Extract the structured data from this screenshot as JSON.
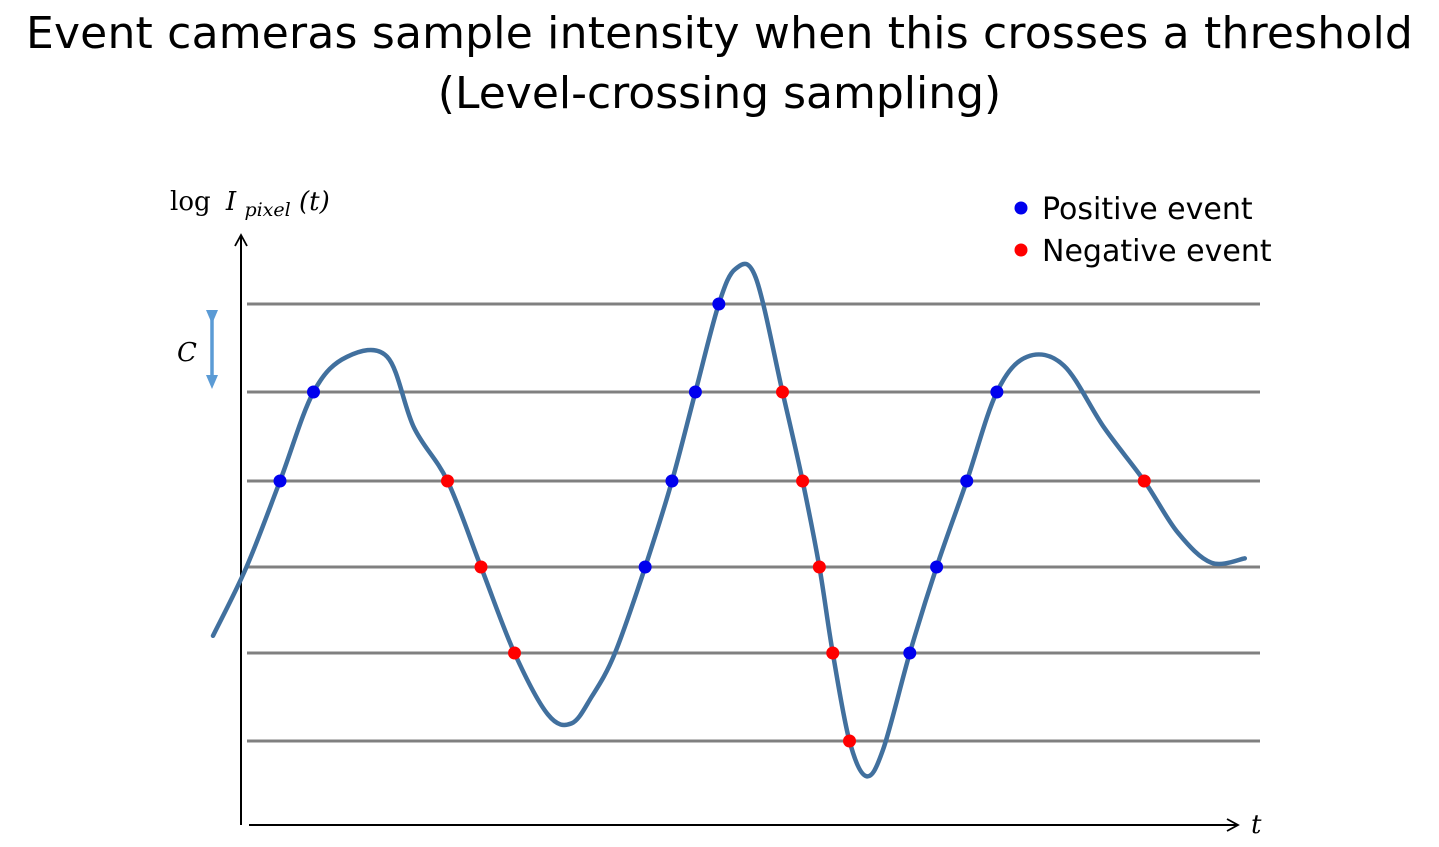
{
  "title": {
    "line1": "Event cameras sample intensity when this crosses a threshold",
    "line2": "(Level-crossing sampling)"
  },
  "axes": {
    "y_label_log": "log",
    "y_label_var": "I",
    "y_label_sub": "pixel",
    "y_label_arg": "(t)",
    "x_label": "t",
    "threshold_label": "C"
  },
  "legend": {
    "positive": {
      "label": "Positive event",
      "color": "#0000ee"
    },
    "negative": {
      "label": "Negative event",
      "color": "#ff0000"
    }
  },
  "colors": {
    "curve": "#41709e",
    "level_lines": "#808080",
    "threshold_arrow": "#5b9bd5",
    "axes": "#000000"
  },
  "levels": [
    3,
    2,
    1,
    0,
    -1,
    -2
  ],
  "curve_points": [
    [
      0.0,
      -0.8
    ],
    [
      1.0,
      0.0
    ],
    [
      2.0,
      1.0
    ],
    [
      3.0,
      2.0
    ],
    [
      4.0,
      2.4
    ],
    [
      5.2,
      2.4
    ],
    [
      6.0,
      1.6
    ],
    [
      7.0,
      1.0
    ],
    [
      8.0,
      0.0
    ],
    [
      9.0,
      -1.0
    ],
    [
      10.0,
      -1.7
    ],
    [
      10.7,
      -1.8
    ],
    [
      11.3,
      -1.5
    ],
    [
      12.0,
      -1.0
    ],
    [
      12.9,
      0.0
    ],
    [
      13.7,
      1.0
    ],
    [
      14.4,
      2.0
    ],
    [
      15.1,
      3.0
    ],
    [
      15.6,
      3.4
    ],
    [
      16.2,
      3.3
    ],
    [
      17.0,
      2.0
    ],
    [
      17.6,
      1.0
    ],
    [
      18.1,
      0.0
    ],
    [
      18.5,
      -1.0
    ],
    [
      19.0,
      -2.0
    ],
    [
      19.5,
      -2.4
    ],
    [
      20.0,
      -2.1
    ],
    [
      20.8,
      -1.0
    ],
    [
      21.6,
      0.0
    ],
    [
      22.5,
      1.0
    ],
    [
      23.4,
      2.0
    ],
    [
      24.3,
      2.4
    ],
    [
      25.4,
      2.3
    ],
    [
      26.6,
      1.6
    ],
    [
      27.8,
      1.0
    ],
    [
      28.8,
      0.4
    ],
    [
      29.8,
      0.05
    ],
    [
      30.8,
      0.1
    ]
  ],
  "events": [
    {
      "t": 2.0,
      "level": 1,
      "polarity": "positive"
    },
    {
      "t": 3.0,
      "level": 2,
      "polarity": "positive"
    },
    {
      "t": 7.0,
      "level": 1,
      "polarity": "negative"
    },
    {
      "t": 8.0,
      "level": 0,
      "polarity": "negative"
    },
    {
      "t": 9.0,
      "level": -1,
      "polarity": "negative"
    },
    {
      "t": 12.9,
      "level": 0,
      "polarity": "positive"
    },
    {
      "t": 13.7,
      "level": 1,
      "polarity": "positive"
    },
    {
      "t": 14.4,
      "level": 2,
      "polarity": "positive"
    },
    {
      "t": 15.1,
      "level": 3,
      "polarity": "positive"
    },
    {
      "t": 17.0,
      "level": 2,
      "polarity": "negative"
    },
    {
      "t": 17.6,
      "level": 1,
      "polarity": "negative"
    },
    {
      "t": 18.1,
      "level": 0,
      "polarity": "negative"
    },
    {
      "t": 18.5,
      "level": -1,
      "polarity": "negative"
    },
    {
      "t": 19.0,
      "level": -2,
      "polarity": "negative"
    },
    {
      "t": 20.8,
      "level": -1,
      "polarity": "positive"
    },
    {
      "t": 21.6,
      "level": 0,
      "polarity": "positive"
    },
    {
      "t": 22.5,
      "level": 1,
      "polarity": "positive"
    },
    {
      "t": 23.4,
      "level": 2,
      "polarity": "positive"
    },
    {
      "t": 27.8,
      "level": 1,
      "polarity": "negative"
    }
  ]
}
